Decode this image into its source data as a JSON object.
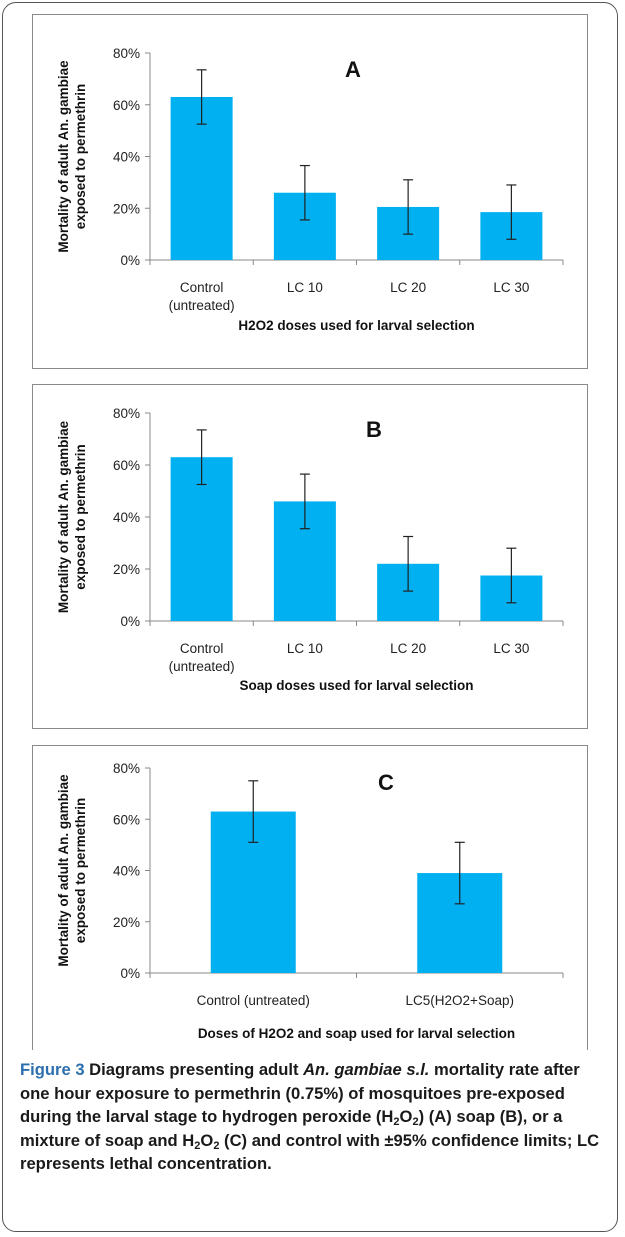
{
  "chart_data": [
    {
      "type": "bar",
      "title": "A",
      "categories": [
        "Control\n(untreated)",
        "LC 10",
        "LC 20",
        "LC 30"
      ],
      "values": [
        0.63,
        0.26,
        0.205,
        0.185
      ],
      "error_low": [
        0.525,
        0.155,
        0.1,
        0.08
      ],
      "error_high": [
        0.735,
        0.365,
        0.31,
        0.29
      ],
      "xlabel": "H2O2 doses used for larval selection",
      "ylabel": "Mortality of adult An. gambiae\nexposed to permethrin",
      "ylim": [
        0,
        0.8
      ],
      "yticks": [
        "0%",
        "20%",
        "40%",
        "60%",
        "80%"
      ],
      "bar_color": "#00b0f0",
      "grid": false
    },
    {
      "type": "bar",
      "title": "B",
      "categories": [
        "Control\n(untreated)",
        "LC 10",
        "LC 20",
        "LC 30"
      ],
      "values": [
        0.63,
        0.46,
        0.22,
        0.175
      ],
      "error_low": [
        0.525,
        0.355,
        0.115,
        0.07
      ],
      "error_high": [
        0.735,
        0.565,
        0.325,
        0.28
      ],
      "xlabel": "Soap doses used for larval selection",
      "ylabel": "Mortality of adult An. gambiae\nexposed to permethrin",
      "ylim": [
        0,
        0.8
      ],
      "yticks": [
        "0%",
        "20%",
        "40%",
        "60%",
        "80%"
      ],
      "bar_color": "#00b0f0",
      "grid": false
    },
    {
      "type": "bar",
      "title": "C",
      "categories": [
        "Control (untreated)",
        "LC5(H2O2+Soap)"
      ],
      "values": [
        0.63,
        0.39
      ],
      "error_low": [
        0.51,
        0.27
      ],
      "error_high": [
        0.75,
        0.51
      ],
      "xlabel": "Doses  of H2O2 and soap used for larval selection",
      "ylabel": "Mortality of adult An. gambiae\nexposed to permethrin",
      "ylim": [
        0,
        0.8
      ],
      "yticks": [
        "0%",
        "20%",
        "40%",
        "60%",
        "80%"
      ],
      "bar_color": "#00b0f0",
      "grid": false
    }
  ],
  "caption": {
    "label": "Figure 3",
    "t1": " Diagrams presenting adult ",
    "species": "An. gambiae s.l.",
    "t2": " mortality rate after one hour exposure to permethrin (0.75%) of mosquitoes pre-exposed during the larval stage to hydrogen peroxide (H",
    "sub1": "2",
    "t3": "O",
    "sub2": "2",
    "t4": ") (A) soap (B), or a mixture of soap and H",
    "sub3": "2",
    "t5": "O",
    "sub4": "2",
    "t6": " (C) and control with ±95% confidence limits; LC represents lethal concentration."
  }
}
